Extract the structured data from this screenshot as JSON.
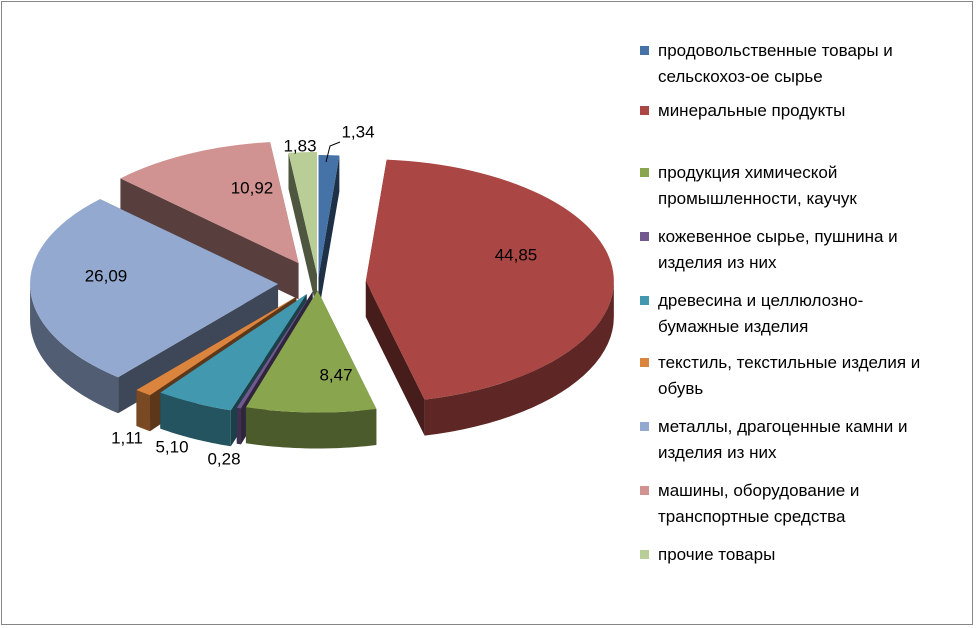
{
  "chart_data": {
    "type": "pie",
    "style": "3d-exploded",
    "title": "",
    "legend_position": "right",
    "slices": [
      {
        "label": "продовольственные товары и сельскохоз-ое сырье",
        "value": 1.34,
        "value_label": "1,34",
        "color": "#4572A7"
      },
      {
        "label": "минеральные продукты",
        "value": 44.85,
        "value_label": "44,85",
        "color": "#AA4643"
      },
      {
        "label": "продукция химической промышленности, каучук",
        "value": 8.47,
        "value_label": "8,47",
        "color": "#89A54E"
      },
      {
        "label": "кожевенное сырье, пушнина и изделия из них",
        "value": 0.28,
        "value_label": "0,28",
        "color": "#71588F"
      },
      {
        "label": "древесина и целлюлозно-бумажные изделия",
        "value": 5.1,
        "value_label": "5,10",
        "color": "#4198AF"
      },
      {
        "label": "текстиль, текстильные изделия  и обувь",
        "value": 1.11,
        "value_label": "1,11",
        "color": "#DB843D"
      },
      {
        "label": "металлы, драгоценные камни и изделия из них",
        "value": 26.09,
        "value_label": "26,09",
        "color": "#93A9CF"
      },
      {
        "label": "машины, оборудование и транспортные средства",
        "value": 10.92,
        "value_label": "10,92",
        "color": "#D19392"
      },
      {
        "label": "прочие товары",
        "value": 1.83,
        "value_label": "1,83",
        "color": "#B9CD96"
      }
    ]
  },
  "legend": {
    "items": [
      {
        "lines": [
          "продовольственные товары и",
          "сельскохоз-ое сырье"
        ],
        "color": "#4572A7"
      },
      {
        "lines": [
          "минеральные продукты"
        ],
        "color": "#AA4643"
      },
      {
        "lines": [
          "продукция химической",
          "промышленности, каучук"
        ],
        "color": "#89A54E"
      },
      {
        "lines": [
          "кожевенное сырье, пушнина и",
          "изделия из них"
        ],
        "color": "#71588F"
      },
      {
        "lines": [
          "древесина и целлюлозно-",
          "бумажные изделия"
        ],
        "color": "#4198AF"
      },
      {
        "lines": [
          "текстиль, текстильные изделия  и",
          "обувь"
        ],
        "color": "#DB843D"
      },
      {
        "lines": [
          "металлы, драгоценные камни и",
          "изделия из них"
        ],
        "color": "#93A9CF"
      },
      {
        "lines": [
          "машины, оборудование и",
          "транспортные средства"
        ],
        "color": "#D19392"
      },
      {
        "lines": [
          "прочие товары"
        ],
        "color": "#B9CD96"
      }
    ]
  }
}
